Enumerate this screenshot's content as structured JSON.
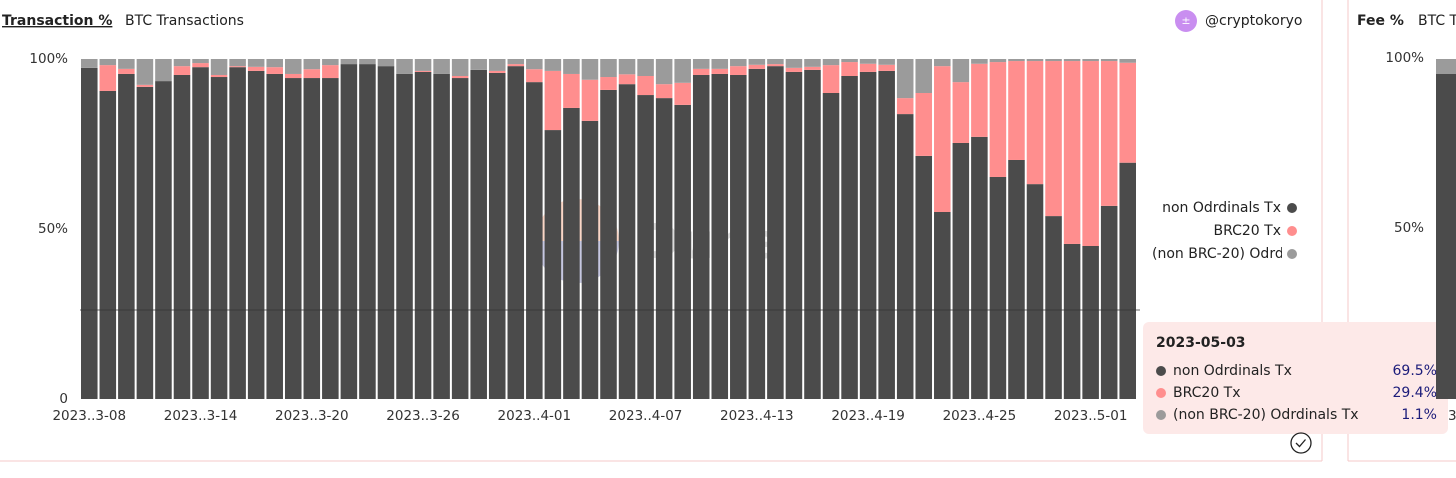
{
  "header": {
    "active_tab": "Transaction %",
    "tab": "BTC Transactions",
    "author": "@cryptokoryo"
  },
  "watermark": "Dune",
  "second_panel": {
    "active_tab": "Fee %",
    "tab": "BTC T",
    "yticks": [
      "100%",
      "50%"
    ],
    "x_tick": "3"
  },
  "chart_data": {
    "type": "stacked_bar",
    "categories": [
      "2023-03-08",
      "2023-03-09",
      "2023-03-10",
      "2023-03-11",
      "2023-03-12",
      "2023-03-13",
      "2023-03-14",
      "2023-03-15",
      "2023-03-16",
      "2023-03-17",
      "2023-03-18",
      "2023-03-19",
      "2023-03-20",
      "2023-03-21",
      "2023-03-22",
      "2023-03-23",
      "2023-03-24",
      "2023-03-25",
      "2023-03-26",
      "2023-03-27",
      "2023-03-28",
      "2023-03-29",
      "2023-03-30",
      "2023-03-31",
      "2023-04-01",
      "2023-04-02",
      "2023-04-03",
      "2023-04-04",
      "2023-04-05",
      "2023-04-06",
      "2023-04-07",
      "2023-04-08",
      "2023-04-09",
      "2023-04-10",
      "2023-04-11",
      "2023-04-12",
      "2023-04-13",
      "2023-04-14",
      "2023-04-15",
      "2023-04-16",
      "2023-04-17",
      "2023-04-18",
      "2023-04-19",
      "2023-04-20",
      "2023-04-21",
      "2023-04-22",
      "2023-04-23",
      "2023-04-24",
      "2023-04-25",
      "2023-04-26",
      "2023-04-27",
      "2023-04-28",
      "2023-04-29",
      "2023-04-30",
      "2023-05-01",
      "2023-05-02",
      "2023-05-03"
    ],
    "series": [
      {
        "name": "non Odrdinals Tx",
        "color": "#4b4b4b",
        "values": [
          97.4,
          90.6,
          95.6,
          91.8,
          93.5,
          95.3,
          97.6,
          94.7,
          97.6,
          96.5,
          95.6,
          94.4,
          94.4,
          94.4,
          98.5,
          98.5,
          97.9,
          95.6,
          96.2,
          95.6,
          94.4,
          96.8,
          95.9,
          97.9,
          93.2,
          79.1,
          85.6,
          81.8,
          90.9,
          92.6,
          89.4,
          88.5,
          86.5,
          95.3,
          95.6,
          95.3,
          97.1,
          97.9,
          96.2,
          96.8,
          90.0,
          95.0,
          96.2,
          96.5,
          83.8,
          71.5,
          55.0,
          75.3,
          77.1,
          65.3,
          70.3,
          63.2,
          53.8,
          45.6,
          45.0,
          56.8,
          69.5
        ]
      },
      {
        "name": "BRC20 Tx",
        "color": "#ff8e8e",
        "values": [
          0,
          7.6,
          1.5,
          0.6,
          0,
          2.6,
          1.2,
          0.6,
          0.3,
          1.2,
          2.0,
          1.2,
          2.6,
          3.8,
          0,
          0,
          0,
          0,
          0.3,
          0,
          0.6,
          0,
          0.6,
          0.6,
          3.8,
          17.4,
          10.0,
          12.1,
          3.8,
          2.9,
          5.6,
          4.1,
          6.5,
          1.8,
          1.5,
          2.6,
          1.2,
          0.6,
          1.2,
          0.9,
          8.2,
          4.1,
          2.4,
          1.8,
          4.7,
          18.5,
          42.9,
          17.9,
          21.5,
          33.8,
          29.1,
          36.2,
          45.6,
          53.8,
          54.4,
          42.6,
          29.4
        ]
      },
      {
        "name": "(non BRC-20) Odrdinals Tx",
        "color": "#9b9b9b",
        "values": [
          2.6,
          1.8,
          2.9,
          7.6,
          6.5,
          2.1,
          1.2,
          4.7,
          2.1,
          2.3,
          2.4,
          4.4,
          3.0,
          1.8,
          1.5,
          1.5,
          2.1,
          4.4,
          3.5,
          4.4,
          5.0,
          3.2,
          3.5,
          1.5,
          3.0,
          3.5,
          4.4,
          6.1,
          5.3,
          4.5,
          5.0,
          7.4,
          7.0,
          2.9,
          2.9,
          2.1,
          1.7,
          1.5,
          2.6,
          2.3,
          1.8,
          0.9,
          1.4,
          1.7,
          11.5,
          10.0,
          2.1,
          6.8,
          1.4,
          0.9,
          0.6,
          0.6,
          0.6,
          0.6,
          0.6,
          0.6,
          1.1
        ]
      }
    ],
    "xticks": [
      {
        "value": "2023-03-08",
        "label": "2023..3-08"
      },
      {
        "value": "2023-03-14",
        "label": "2023..3-14"
      },
      {
        "value": "2023-03-20",
        "label": "2023..3-20"
      },
      {
        "value": "2023-03-26",
        "label": "2023..3-26"
      },
      {
        "value": "2023-04-01",
        "label": "2023..4-01"
      },
      {
        "value": "2023-04-07",
        "label": "2023..4-07"
      },
      {
        "value": "2023-04-13",
        "label": "2023..4-13"
      },
      {
        "value": "2023-04-19",
        "label": "2023..4-19"
      },
      {
        "value": "2023-04-25",
        "label": "2023..4-25"
      },
      {
        "value": "2023-05-01",
        "label": "2023..5-01"
      }
    ],
    "ylim": [
      0,
      100
    ],
    "yticks": [
      {
        "value": 100,
        "label": "100%"
      },
      {
        "value": 50,
        "label": "50%"
      },
      0
    ],
    "legend": "right",
    "tooltip_value_labels": [
      "69.5%",
      "29.4%",
      "1.1%"
    ]
  }
}
